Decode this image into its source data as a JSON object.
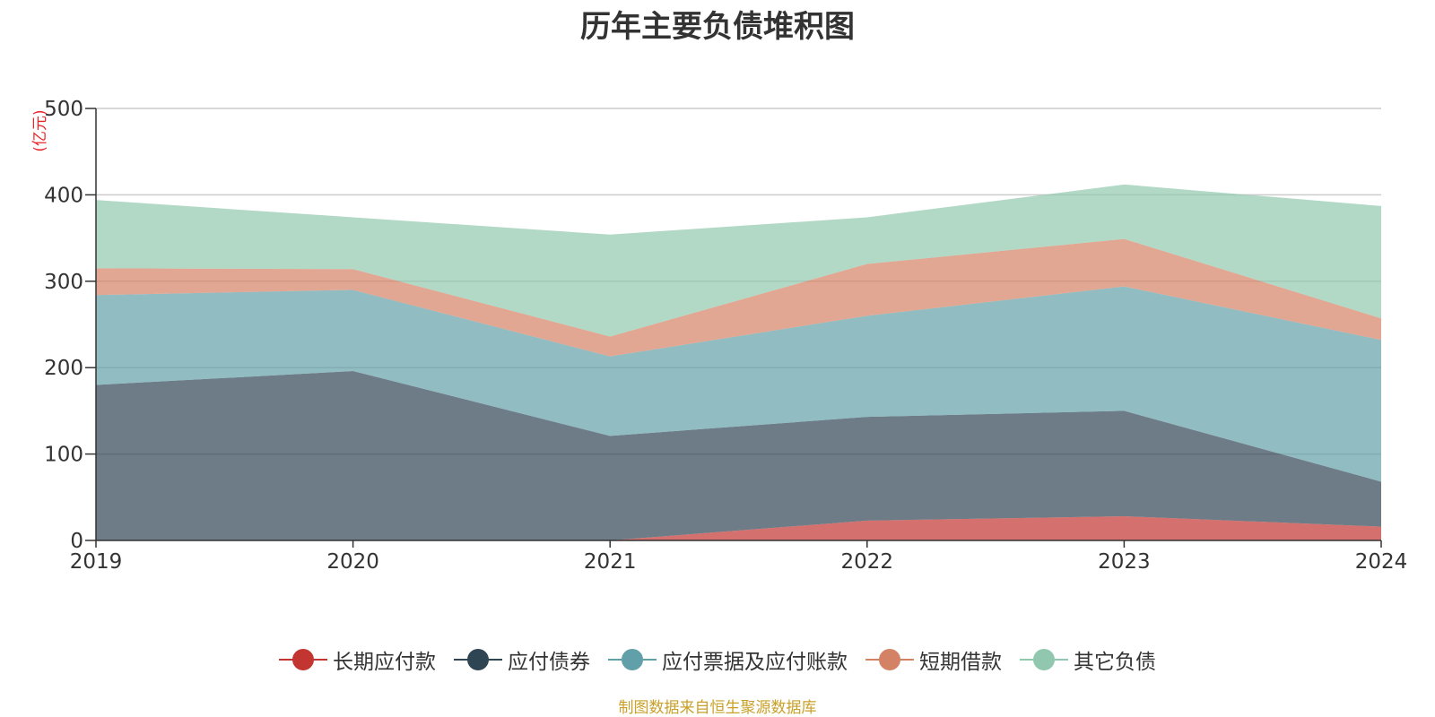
{
  "chart_data": {
    "type": "area",
    "stacked": true,
    "title": "历年主要负债堆积图",
    "ylabel": "(亿元)",
    "ylabel_color": "#e8262a",
    "x": [
      "2019",
      "2020",
      "2021",
      "2022",
      "2023",
      "2024"
    ],
    "ylim": [
      0,
      500
    ],
    "yticks": [
      "0",
      "100",
      "200",
      "300",
      "400",
      "500"
    ],
    "grid": true,
    "legend_position": "bottom",
    "series": [
      {
        "name": "长期应付款",
        "color": "#c23531",
        "values": [
          0,
          0,
          0,
          23,
          28,
          16
        ]
      },
      {
        "name": "应付债券",
        "color": "#2f4554",
        "values": [
          180,
          196,
          121,
          120,
          122,
          52
        ]
      },
      {
        "name": "应付票据及应付账款",
        "color": "#61a0a8",
        "values": [
          104,
          94,
          92,
          117,
          144,
          164
        ]
      },
      {
        "name": "短期借款",
        "color": "#d48265",
        "values": [
          31,
          24,
          23,
          60,
          55,
          25
        ]
      },
      {
        "name": "其它负债",
        "color": "#91c7ae",
        "values": [
          79,
          60,
          118,
          54,
          63,
          130
        ]
      }
    ],
    "source_note": "制图数据来自恒生聚源数据库"
  }
}
